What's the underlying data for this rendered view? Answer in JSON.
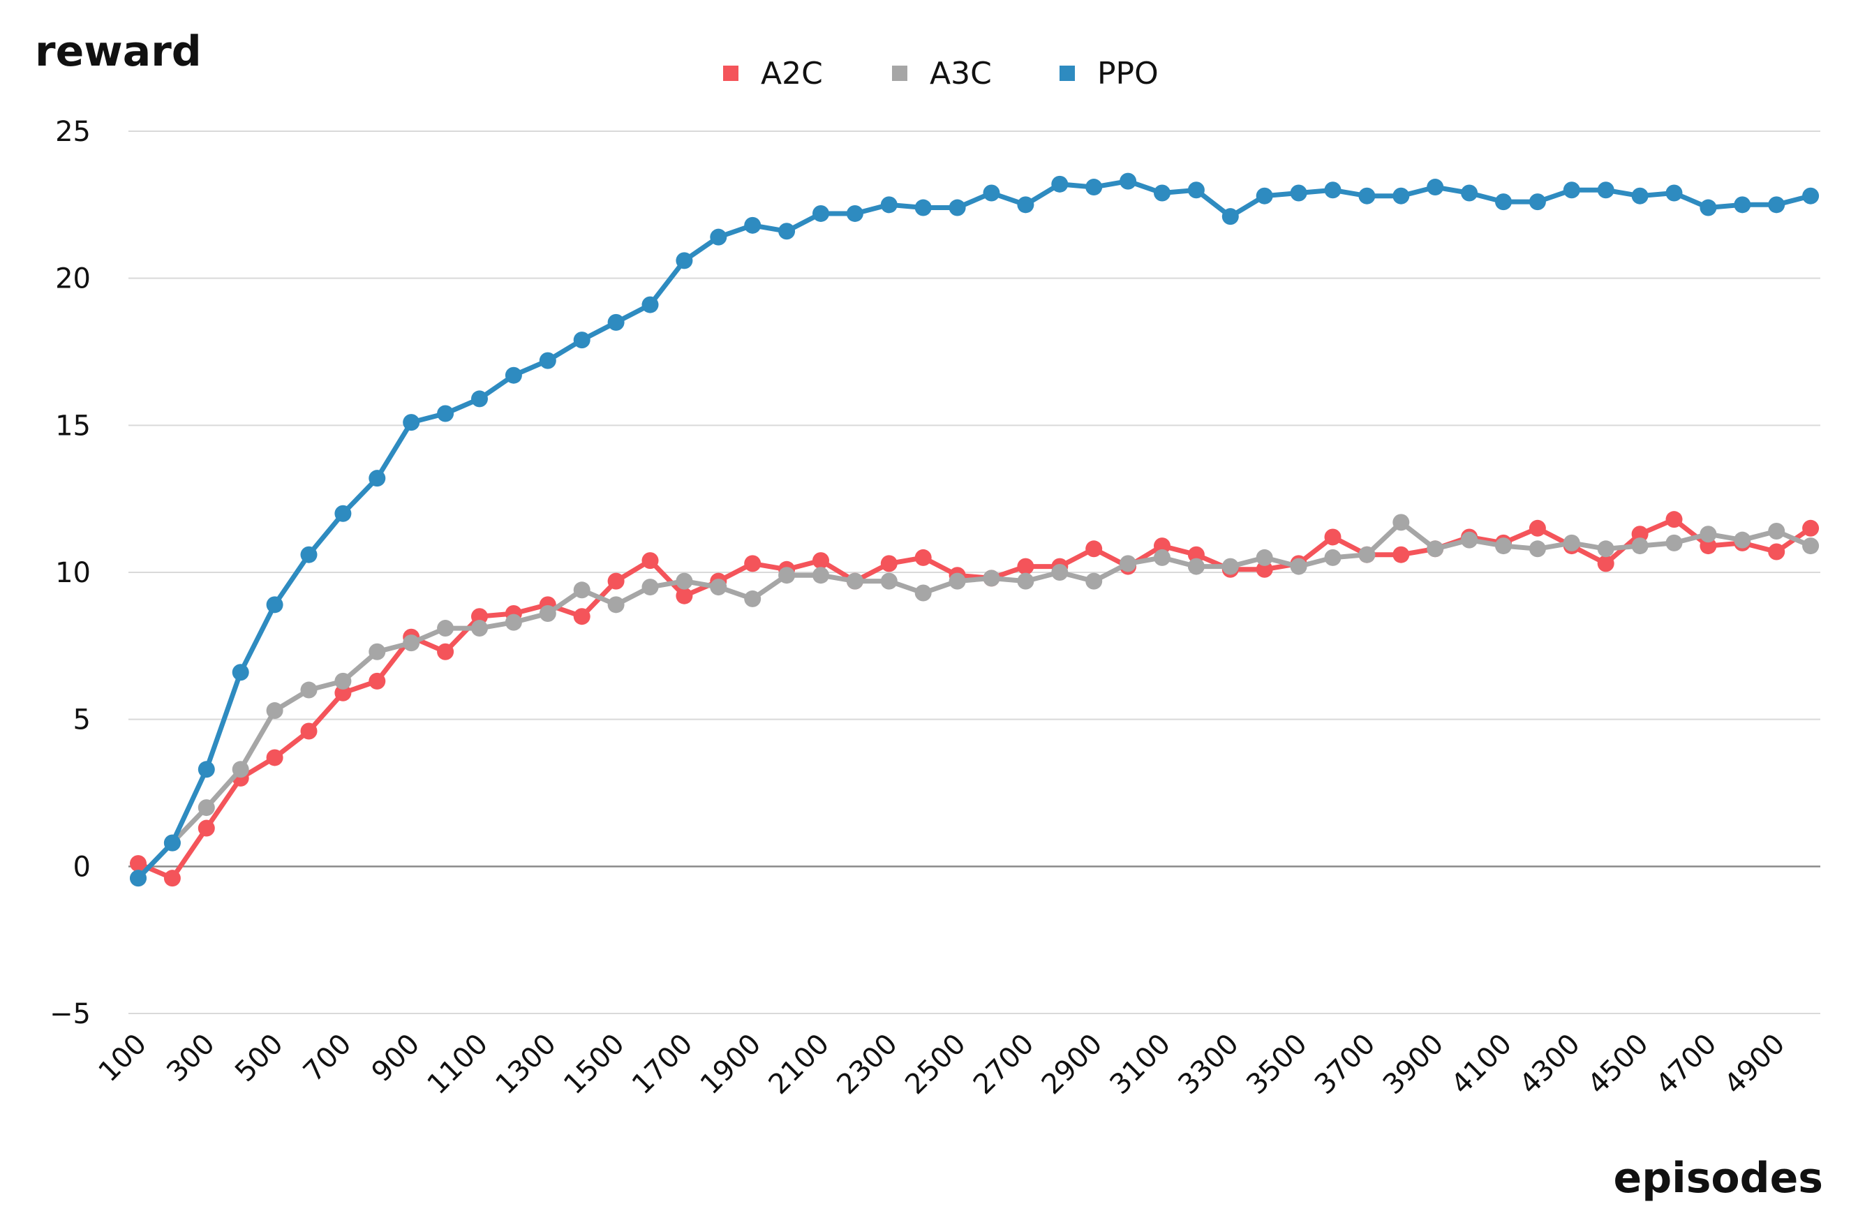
{
  "chart_data": {
    "type": "line",
    "title": "",
    "xlabel": "episodes",
    "ylabel": "reward",
    "ylim": [
      -5,
      25
    ],
    "yticks": [
      25,
      20,
      15,
      10,
      5,
      0,
      -5
    ],
    "grid": true,
    "legend_position": "top-center",
    "x": [
      100,
      200,
      300,
      400,
      500,
      600,
      700,
      800,
      900,
      1000,
      1100,
      1200,
      1300,
      1400,
      1500,
      1600,
      1700,
      1800,
      1900,
      2000,
      2100,
      2200,
      2300,
      2400,
      2500,
      2600,
      2700,
      2800,
      2900,
      3000,
      3100,
      3200,
      3300,
      3400,
      3500,
      3600,
      3700,
      3800,
      3900,
      4000,
      4100,
      4200,
      4300,
      4400,
      4500,
      4600,
      4700,
      4800,
      4900,
      5000
    ],
    "xtick_labels": [
      "100",
      "300",
      "500",
      "700",
      "900",
      "1100",
      "1300",
      "1500",
      "1700",
      "1900",
      "2100",
      "2300",
      "2500",
      "2700",
      "2900",
      "3100",
      "3300",
      "3500",
      "3700",
      "3900",
      "4100",
      "4300",
      "4500",
      "4700",
      "4900"
    ],
    "series": [
      {
        "name": "A2C",
        "color": "#f4545a",
        "values": [
          0.1,
          -0.4,
          1.3,
          3.0,
          3.7,
          4.6,
          5.9,
          6.3,
          7.8,
          7.3,
          8.5,
          8.6,
          8.9,
          8.5,
          9.7,
          10.4,
          9.2,
          9.7,
          10.3,
          10.1,
          10.4,
          9.7,
          10.3,
          10.5,
          9.9,
          9.8,
          10.2,
          10.2,
          10.8,
          10.2,
          10.9,
          10.6,
          10.1,
          10.1,
          10.3,
          11.2,
          10.6,
          10.6,
          10.8,
          11.2,
          11.0,
          11.5,
          10.9,
          10.3,
          11.3,
          11.8,
          10.9,
          11.0,
          10.7,
          11.5
        ]
      },
      {
        "name": "A3C",
        "color": "#a6a6a6",
        "values": [
          -0.4,
          0.8,
          2.0,
          3.3,
          5.3,
          6.0,
          6.3,
          7.3,
          7.6,
          8.1,
          8.1,
          8.3,
          8.6,
          9.4,
          8.9,
          9.5,
          9.7,
          9.5,
          9.1,
          9.9,
          9.9,
          9.7,
          9.7,
          9.3,
          9.7,
          9.8,
          9.7,
          10.0,
          9.7,
          10.3,
          10.5,
          10.2,
          10.2,
          10.5,
          10.2,
          10.5,
          10.6,
          11.7,
          10.8,
          11.1,
          10.9,
          10.8,
          11.0,
          10.8,
          10.9,
          11.0,
          11.3,
          11.1,
          11.4,
          10.9
        ]
      },
      {
        "name": "PPO",
        "color": "#2e8bc0",
        "values": [
          -0.4,
          0.8,
          3.3,
          6.6,
          8.9,
          10.6,
          12.0,
          13.2,
          15.1,
          15.4,
          15.9,
          16.7,
          17.2,
          17.9,
          18.5,
          19.1,
          20.6,
          21.4,
          21.8,
          21.6,
          22.2,
          22.2,
          22.5,
          22.4,
          22.4,
          22.9,
          22.5,
          23.2,
          23.1,
          23.3,
          22.9,
          23.0,
          22.1,
          22.8,
          22.9,
          23.0,
          22.8,
          22.8,
          23.1,
          22.9,
          22.6,
          22.6,
          23.0,
          23.0,
          22.8,
          22.9,
          22.4,
          22.5,
          22.5,
          22.8
        ]
      }
    ]
  }
}
